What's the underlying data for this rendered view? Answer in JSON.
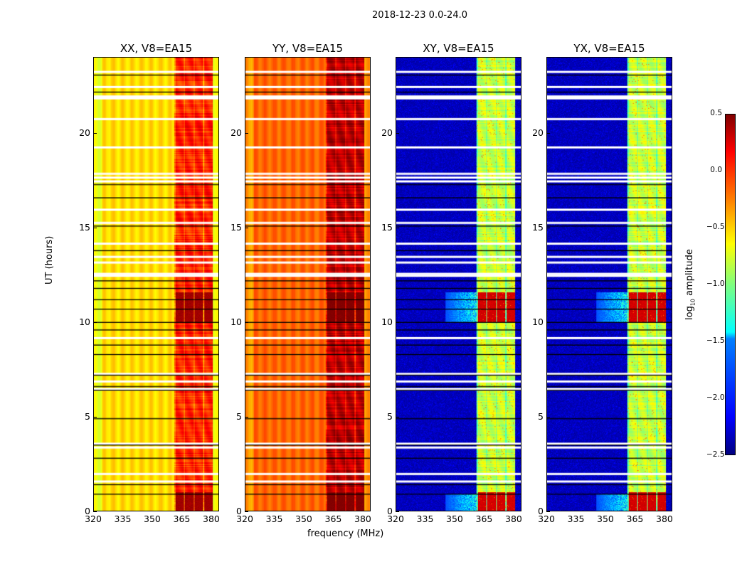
{
  "suptitle": "2018-12-23 0.0-24.0",
  "chart_data": [
    {
      "type": "heatmap",
      "title": "XX, V8=EA15",
      "xlabel": "",
      "ylabel": "UT (hours)",
      "xlim": [
        320,
        384
      ],
      "ylim": [
        0,
        24
      ],
      "base_level": -0.55,
      "band_level": -0.1,
      "peak_level": 0.35,
      "cmap": "jet"
    },
    {
      "type": "heatmap",
      "title": "YY, V8=EA15",
      "xlabel": "frequency (MHz)",
      "ylabel": "",
      "xlim": [
        320,
        384
      ],
      "ylim": [
        0,
        24
      ],
      "base_level": -0.2,
      "band_level": 0.2,
      "peak_level": 0.45,
      "cmap": "jet"
    },
    {
      "type": "heatmap",
      "title": "XY, V8=EA15",
      "xlabel": "",
      "ylabel": "",
      "xlim": [
        320,
        384
      ],
      "ylim": [
        0,
        24
      ],
      "base_level": -2.4,
      "band_level": -0.9,
      "peak_level": 0.2,
      "cmap": "jet"
    },
    {
      "type": "heatmap",
      "title": "YX, V8=EA15",
      "xlabel": "",
      "ylabel": "",
      "xlim": [
        320,
        384
      ],
      "ylim": [
        0,
        24
      ],
      "base_level": -2.4,
      "band_level": -0.9,
      "peak_level": 0.2,
      "cmap": "jet"
    }
  ],
  "rfi_band_mhz": [
    361,
    381
  ],
  "peak_hours": [
    [
      10,
      11.6
    ],
    [
      0,
      1
    ]
  ],
  "flagged_hours": [
    23.3,
    22.5,
    22.0,
    21.9,
    20.8,
    19.3,
    17.9,
    17.7,
    17.5,
    16.0,
    15.3,
    14.2,
    13.5,
    13.2,
    12.6,
    12.5,
    9.2,
    7.3,
    6.9,
    6.5,
    3.6,
    3.4,
    2.0,
    1.6
  ],
  "gap_hours": [
    23.1,
    22.2,
    17.3,
    16.6,
    15.1,
    13.8,
    12.2,
    11.8,
    11.2,
    10.7,
    10.0,
    9.6,
    8.8,
    8.3,
    7.2,
    6.6,
    6.4,
    4.9,
    3.5,
    2.8,
    1.4,
    0.9
  ],
  "yticks": [
    0,
    5,
    10,
    15,
    20
  ],
  "xticks": [
    320,
    335,
    350,
    365,
    380
  ],
  "colorbar": {
    "label": "log10 amplitude",
    "range": [
      -2.5,
      0.5
    ],
    "ticks": [
      "0.5",
      "0.0",
      "−0.5",
      "−1.0",
      "−1.5",
      "−2.0",
      "−2.5"
    ]
  }
}
